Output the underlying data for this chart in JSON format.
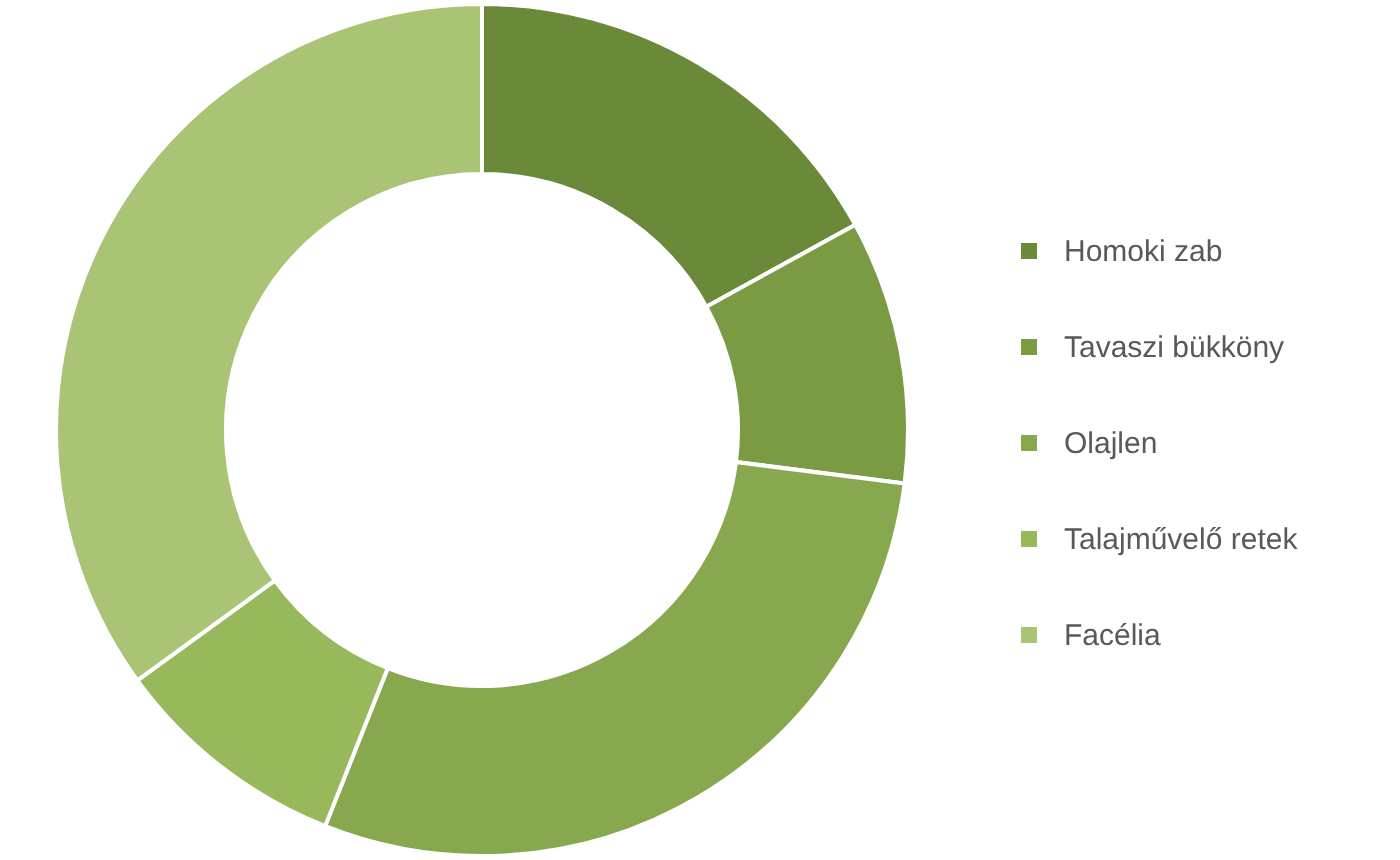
{
  "chart_data": {
    "type": "donut",
    "categories": [
      "Homoki zab",
      "Tavaszi bükköny",
      "Olajlen",
      "Talajművelő retek",
      "Facélia"
    ],
    "values": [
      17,
      10,
      29,
      9,
      35
    ],
    "colors": [
      "#6a8a3a",
      "#7a9a44",
      "#88a850",
      "#98b85c",
      "#a8c474"
    ],
    "legend": "right"
  }
}
